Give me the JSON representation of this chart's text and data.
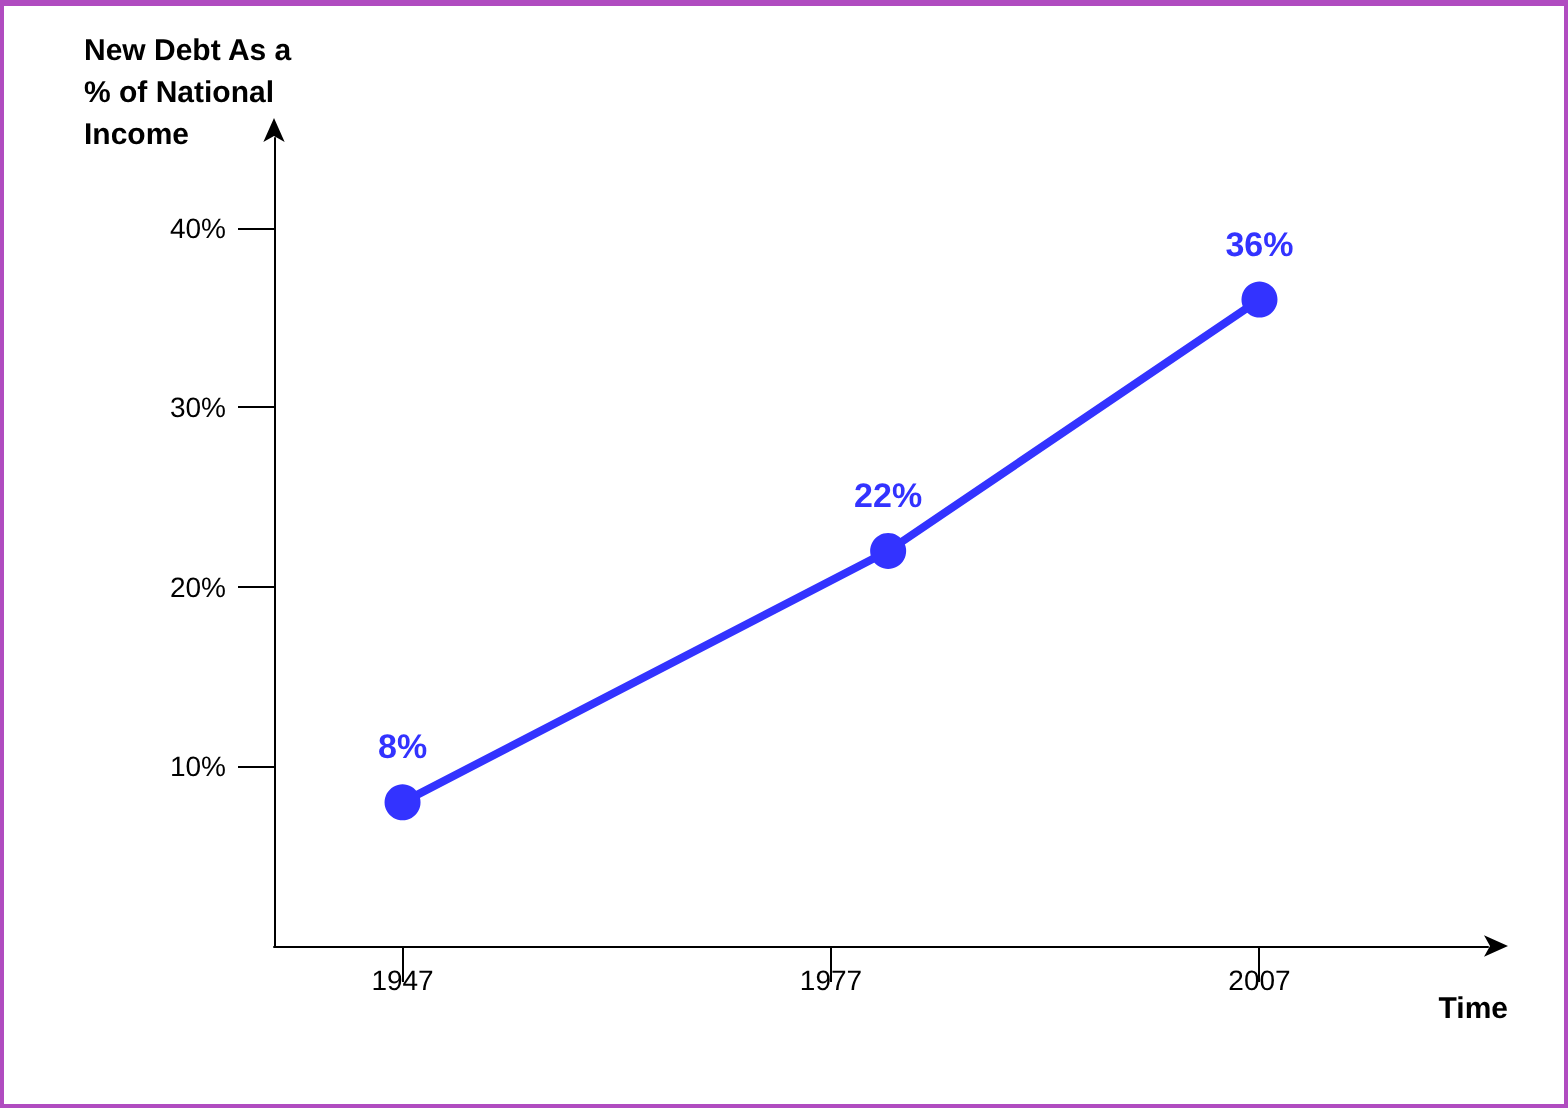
{
  "chart_data": {
    "type": "line",
    "xlabel": "Time",
    "ylabel": "New Debt As a % of National Income",
    "x": [
      1947,
      1981,
      2007
    ],
    "series": [
      {
        "color": "#3333ff",
        "values": [
          8,
          22,
          36
        ],
        "value_labels": [
          "8%",
          "22%",
          "36%"
        ]
      }
    ],
    "xlim": [
      1938,
      2023
    ],
    "xticks": [
      1947,
      1977,
      2007
    ],
    "ylim": [
      0,
      45
    ],
    "yticks": [
      {
        "value": 10,
        "label": "10%"
      },
      {
        "value": 20,
        "label": "20%"
      },
      {
        "value": 30,
        "label": "30%"
      },
      {
        "value": 40,
        "label": "40%"
      }
    ],
    "marker": "circle",
    "line_style": "solid"
  }
}
